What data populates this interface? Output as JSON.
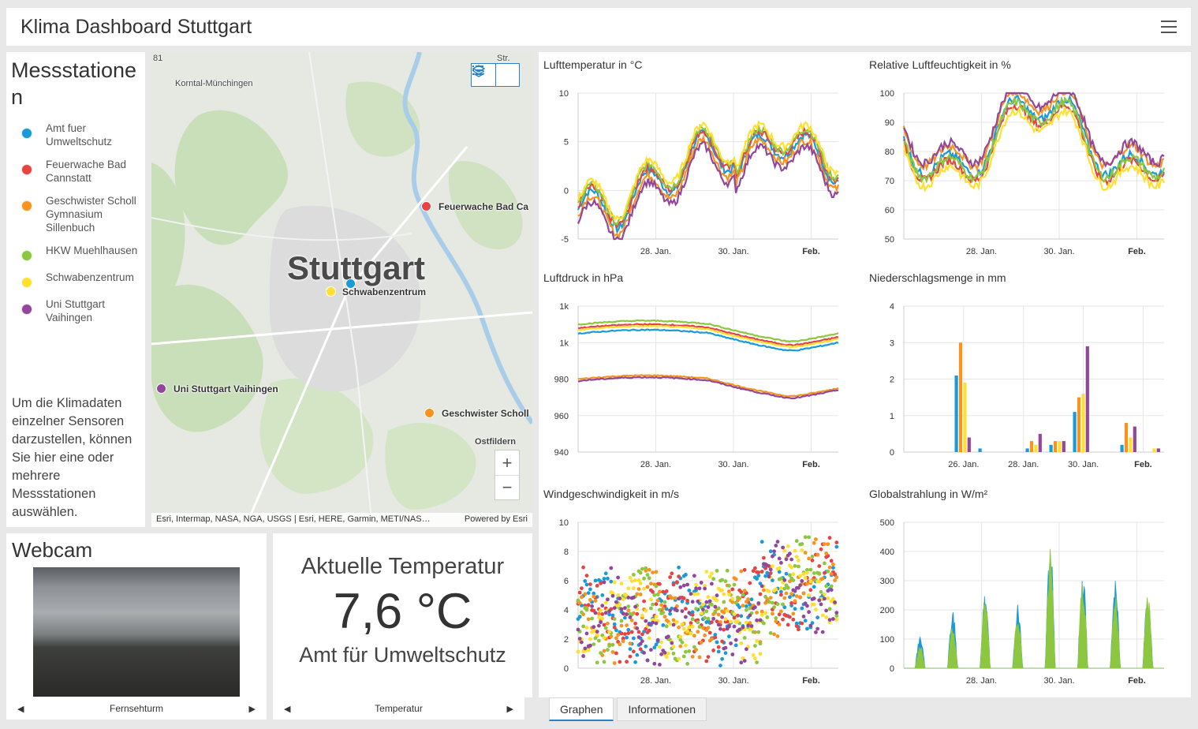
{
  "header": {
    "title": "Klima Dashboard Stuttgart",
    "menu_icon": "hamburger-icon"
  },
  "legend": {
    "title": "Messstationen",
    "items": [
      {
        "label": "Amt fuer Umweltschutz",
        "color": "#1a9bd7"
      },
      {
        "label": "Feuerwache Bad Cannstatt",
        "color": "#e84343"
      },
      {
        "label": "Geschwister Scholl Gymnasium Sillenbuch",
        "color": "#f7931e"
      },
      {
        "label": "HKW Muehlhausen",
        "color": "#8dc63f"
      },
      {
        "label": "Schwabenzentrum",
        "color": "#ffe030"
      },
      {
        "label": "Uni Stuttgart Vaihingen",
        "color": "#93479b"
      }
    ],
    "hint": "Um die Klimadaten einzelner Sensoren darzustellen, können Sie hier eine oder mehrere Messstationen auswählen."
  },
  "map": {
    "city": "Stuttgart",
    "places": [
      "Korntal-Münchingen",
      "Ostfildern",
      "81",
      "Str."
    ],
    "stations": [
      "Feuerwache Bad Ca",
      "Schwabenzentrum",
      "Uni Stuttgart Vaihingen",
      "Geschwister Scholl"
    ],
    "attribution": "Esri, Intermap, NASA, NGA, USGS | Esri, HERE, Garmin, METI/NAS…",
    "powered": "Powered by Esri",
    "zoom_in": "+",
    "zoom_out": "−"
  },
  "webcam": {
    "title": "Webcam",
    "nav_label": "Fernsehturm"
  },
  "temperature": {
    "heading": "Aktuelle Temperatur",
    "value": "7,6 °C",
    "station": "Amt für Umweltschutz",
    "nav_label": "Temperatur"
  },
  "tabs": [
    {
      "label": "Graphen",
      "active": true
    },
    {
      "label": "Informationen",
      "active": false
    }
  ],
  "chart_data": [
    {
      "type": "line",
      "title": "Lufttemperatur in °C",
      "yticks": [
        "10",
        "5",
        "0",
        "-5"
      ],
      "ylim": [
        -5,
        10
      ],
      "xticks": [
        "28. Jan.",
        "30. Jan.",
        "Feb."
      ]
    },
    {
      "type": "line",
      "title": "Relative Luftfeuchtigkeit in %",
      "yticks": [
        "100",
        "90",
        "80",
        "70",
        "60",
        "50"
      ],
      "ylim": [
        50,
        100
      ],
      "xticks": [
        "28. Jan.",
        "30. Jan.",
        "Feb."
      ]
    },
    {
      "type": "line",
      "title": "Luftdruck in hPa",
      "yticks": [
        "1k",
        "1k",
        "980",
        "960",
        "940"
      ],
      "ylim": [
        940,
        1020
      ],
      "xticks": [
        "28. Jan.",
        "30. Jan.",
        "Feb."
      ]
    },
    {
      "type": "bar",
      "title": "Niederschlagsmenge in mm",
      "yticks": [
        "4",
        "3",
        "2",
        "1",
        "0"
      ],
      "ylim": [
        0,
        4
      ],
      "xticks": [
        "26. Jan.",
        "28. Jan.",
        "30. Jan.",
        "Feb."
      ],
      "series": [
        {
          "name": "Amt fuer Umweltschutz",
          "values": [
            0,
            0,
            2.1,
            0.1,
            0,
            0.1,
            0.2,
            1.1,
            0,
            0.2,
            0
          ]
        },
        {
          "name": "Geschwister Scholl Gymnasium Sillenbuch",
          "values": [
            0,
            0,
            3.0,
            0,
            0,
            0.3,
            0.3,
            1.5,
            0,
            0.8,
            0
          ]
        },
        {
          "name": "Schwabenzentrum",
          "values": [
            0,
            0,
            1.9,
            0,
            0,
            0.2,
            0.3,
            1.6,
            0,
            0.4,
            0.1
          ]
        },
        {
          "name": "Uni Stuttgart Vaihingen",
          "values": [
            0,
            0,
            0.4,
            0,
            0,
            0.5,
            0.3,
            2.9,
            0,
            0.7,
            0.1
          ]
        }
      ]
    },
    {
      "type": "scatter",
      "title": "Windgeschwindigkeit in m/s",
      "yticks": [
        "10",
        "8",
        "6",
        "4",
        "2",
        "0"
      ],
      "ylim": [
        0,
        10
      ],
      "xticks": [
        "28. Jan.",
        "30. Jan.",
        "Feb."
      ]
    },
    {
      "type": "area",
      "title": "Globalstrahlung in W/m²",
      "yticks": [
        "500",
        "400",
        "300",
        "200",
        "100",
        "0"
      ],
      "ylim": [
        0,
        500
      ],
      "xticks": [
        "28. Jan.",
        "30. Jan.",
        "Feb."
      ],
      "series": [
        {
          "name": "Amt fuer Umweltschutz",
          "peaks": [
            110,
            200,
            260,
            220,
            430,
            340,
            300,
            280
          ]
        },
        {
          "name": "HKW Muehlhausen",
          "peaks": [
            80,
            150,
            250,
            180,
            410,
            300,
            260,
            260
          ]
        }
      ]
    }
  ]
}
